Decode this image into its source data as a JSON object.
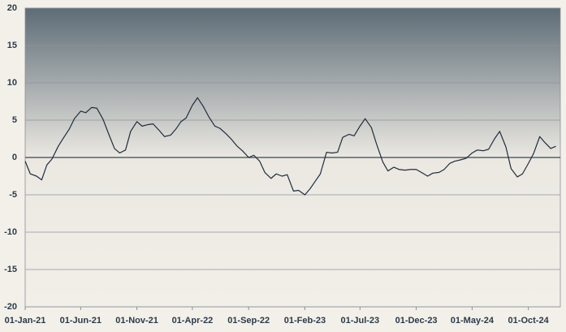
{
  "chart_data": {
    "type": "line",
    "x": [
      "2021-01-01",
      "2021-01-15",
      "2021-02-01",
      "2021-02-15",
      "2021-03-01",
      "2021-03-15",
      "2021-04-01",
      "2021-04-15",
      "2021-05-01",
      "2021-05-15",
      "2021-06-01",
      "2021-06-15",
      "2021-07-01",
      "2021-07-15",
      "2021-08-01",
      "2021-08-15",
      "2021-09-01",
      "2021-09-15",
      "2021-10-01",
      "2021-10-15",
      "2021-11-01",
      "2021-11-15",
      "2021-12-01",
      "2021-12-15",
      "2022-01-01",
      "2022-01-15",
      "2022-02-01",
      "2022-02-15",
      "2022-03-01",
      "2022-03-15",
      "2022-04-01",
      "2022-04-15",
      "2022-05-01",
      "2022-05-15",
      "2022-06-01",
      "2022-06-15",
      "2022-07-01",
      "2022-07-15",
      "2022-08-01",
      "2022-08-15",
      "2022-09-01",
      "2022-09-15",
      "2022-10-01",
      "2022-10-15",
      "2022-11-01",
      "2022-11-15",
      "2022-12-01",
      "2022-12-15",
      "2023-01-01",
      "2023-01-15",
      "2023-02-01",
      "2023-02-15",
      "2023-03-01",
      "2023-03-15",
      "2023-04-01",
      "2023-04-15",
      "2023-05-01",
      "2023-05-15",
      "2023-06-01",
      "2023-06-15",
      "2023-07-01",
      "2023-07-15",
      "2023-08-01",
      "2023-08-15",
      "2023-09-01",
      "2023-09-15",
      "2023-10-01",
      "2023-10-15",
      "2023-11-01",
      "2023-11-15",
      "2023-12-01",
      "2023-12-15",
      "2024-01-01",
      "2024-01-15",
      "2024-02-01",
      "2024-02-15",
      "2024-03-01",
      "2024-03-15",
      "2024-04-01",
      "2024-04-15",
      "2024-05-01",
      "2024-05-15",
      "2024-06-01",
      "2024-06-15",
      "2024-07-01",
      "2024-07-15",
      "2024-08-01",
      "2024-08-15",
      "2024-09-01",
      "2024-09-15",
      "2024-10-01",
      "2024-10-15",
      "2024-11-01",
      "2024-11-15",
      "2024-12-01",
      "2024-12-15"
    ],
    "values": [
      -0.5,
      -2.2,
      -2.5,
      -3,
      -1,
      -0.2,
      1.5,
      2.6,
      3.8,
      5.2,
      6.2,
      6,
      6.7,
      6.6,
      5.1,
      3.3,
      1.2,
      0.6,
      1,
      3.5,
      4.8,
      4.2,
      4.4,
      4.5,
      3.6,
      2.8,
      3,
      3.8,
      4.8,
      5.3,
      7,
      8,
      6.8,
      5.5,
      4.2,
      3.9,
      3.2,
      2.5,
      1.5,
      0.9,
      0,
      0.3,
      -0.5,
      -2,
      -2.8,
      -2.2,
      -2.5,
      -2.3,
      -4.5,
      -4.4,
      -5,
      -4.2,
      -3.2,
      -2.2,
      0.7,
      0.6,
      0.7,
      2.7,
      3.1,
      2.9,
      4.2,
      5.2,
      4,
      1.8,
      -0.6,
      -1.8,
      -1.3,
      -1.6,
      -1.7,
      -1.6,
      -1.6,
      -2,
      -2.5,
      -2.1,
      -2,
      -1.6,
      -0.8,
      -0.5,
      -0.3,
      -0.1,
      0.6,
      1,
      0.9,
      1.1,
      2.5,
      3.5,
      1.4,
      -1.5,
      -2.6,
      -2.2,
      -0.8,
      0.5,
      2.8,
      2,
      1.2,
      1.5
    ],
    "color": "#1f2d3d",
    "xlim": [
      "2021-01-01",
      "2024-12-27"
    ],
    "xticks": [
      {
        "value": "2021-01-01",
        "label": "01-Jan-21"
      },
      {
        "value": "2021-06-01",
        "label": "01-Jun-21"
      },
      {
        "value": "2021-11-01",
        "label": "01-Nov-21"
      },
      {
        "value": "2022-04-01",
        "label": "01-Apr-22"
      },
      {
        "value": "2022-09-01",
        "label": "01-Sep-22"
      },
      {
        "value": "2023-02-01",
        "label": "01-Feb-23"
      },
      {
        "value": "2023-07-01",
        "label": "01-Jul-23"
      },
      {
        "value": "2023-12-01",
        "label": "01-Dec-23"
      },
      {
        "value": "2024-05-01",
        "label": "01-May-24"
      },
      {
        "value": "2024-10-01",
        "label": "01-Oct-24"
      }
    ],
    "ylim": [
      -20,
      20
    ],
    "yticks": [
      -20,
      -15,
      -10,
      -5,
      0,
      5,
      10,
      15,
      20
    ],
    "grid": true
  }
}
